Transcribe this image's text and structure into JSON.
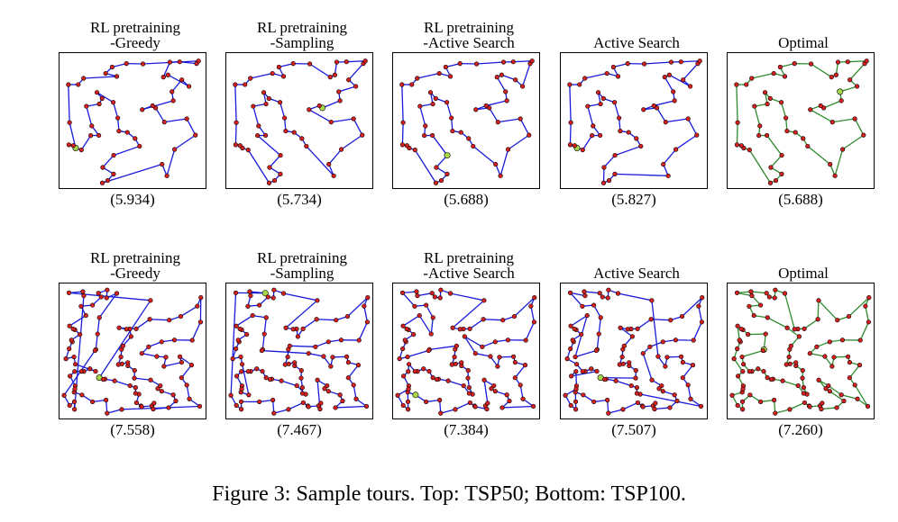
{
  "chart_data": {
    "type": "scatter",
    "rows": [
      {
        "row_label": "TSP50",
        "panels": [
          {
            "title_line1": "RL pretraining",
            "title_line2": "-Greedy",
            "tour_length": "(5.934)",
            "method": "rl-greedy",
            "tour_color": "#1a1adb",
            "seed": 11
          },
          {
            "title_line1": "RL pretraining",
            "title_line2": "-Sampling",
            "tour_length": "(5.734)",
            "method": "rl-sampling",
            "tour_color": "#1a1adb",
            "seed": 11
          },
          {
            "title_line1": "RL pretraining",
            "title_line2": "-Active Search",
            "tour_length": "(5.688)",
            "method": "rl-active-search",
            "tour_color": "#1a1adb",
            "seed": 11
          },
          {
            "title_line1": "",
            "title_line2": "Active Search",
            "tour_length": "(5.827)",
            "method": "active-search",
            "tour_color": "#1a1adb",
            "seed": 11
          },
          {
            "title_line1": "",
            "title_line2": "Optimal",
            "tour_length": "(5.688)",
            "method": "optimal",
            "tour_color": "#2e8b2e",
            "seed": 11
          }
        ]
      },
      {
        "row_label": "TSP100",
        "panels": [
          {
            "title_line1": "RL pretraining",
            "title_line2": "-Greedy",
            "tour_length": "(7.558)",
            "method": "rl-greedy",
            "tour_color": "#1a1adb",
            "seed": 23
          },
          {
            "title_line1": "RL pretraining",
            "title_line2": "-Sampling",
            "tour_length": "(7.467)",
            "method": "rl-sampling",
            "tour_color": "#1a1adb",
            "seed": 23
          },
          {
            "title_line1": "RL pretraining",
            "title_line2": "-Active Search",
            "tour_length": "(7.384)",
            "method": "rl-active-search",
            "tour_color": "#1a1adb",
            "seed": 23
          },
          {
            "title_line1": "",
            "title_line2": "Active Search",
            "tour_length": "(7.507)",
            "method": "active-search",
            "tour_color": "#1a1adb",
            "seed": 23
          },
          {
            "title_line1": "",
            "title_line2": "Optimal",
            "tour_length": "(7.260)",
            "method": "optimal",
            "tour_color": "#2e8b2e",
            "seed": 23
          }
        ]
      }
    ],
    "point_color": "#d62020",
    "start_point_color": "#a8d84a",
    "grid": false,
    "axes_ticks": false
  },
  "caption": "Figure 3: Sample tours. Top: TSP50; Bottom: TSP100."
}
